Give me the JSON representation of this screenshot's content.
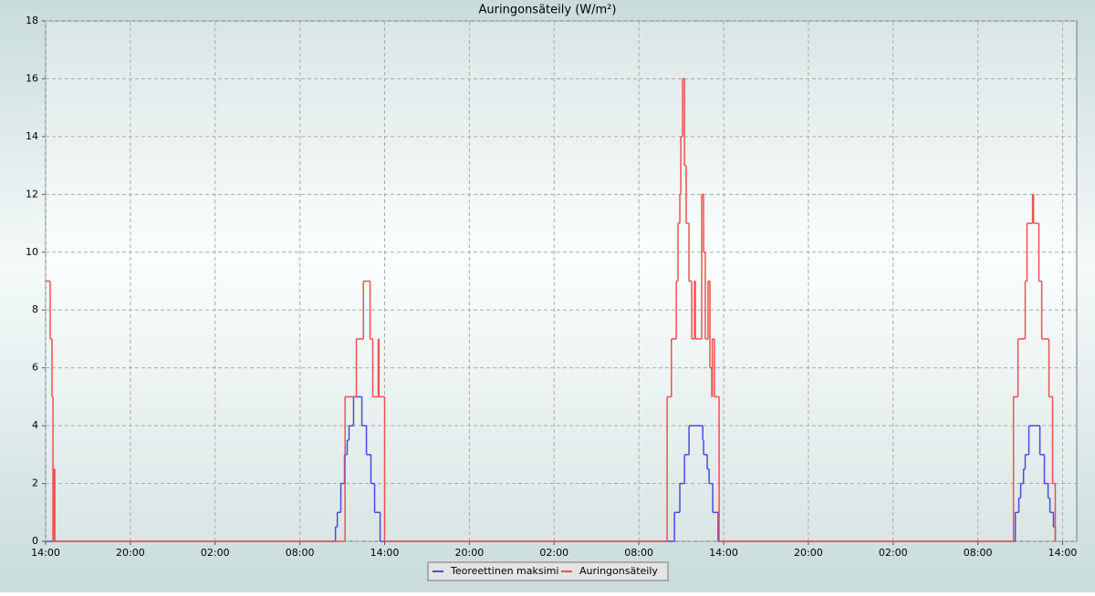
{
  "chart_data": {
    "type": "step-line",
    "title": "Auringonsäteily (W/m²)",
    "xlim": [
      0,
      73
    ],
    "xticks": [
      {
        "value": 0,
        "label": "14:00"
      },
      {
        "value": 6,
        "label": "20:00"
      },
      {
        "value": 12,
        "label": "02:00"
      },
      {
        "value": 18,
        "label": "08:00"
      },
      {
        "value": 24,
        "label": "14:00"
      },
      {
        "value": 30,
        "label": "20:00"
      },
      {
        "value": 36,
        "label": "02:00"
      },
      {
        "value": 42,
        "label": "08:00"
      },
      {
        "value": 48,
        "label": "14:00"
      },
      {
        "value": 54,
        "label": "20:00"
      },
      {
        "value": 60,
        "label": "02:00"
      },
      {
        "value": 66,
        "label": "08:00"
      },
      {
        "value": 72,
        "label": "14:00"
      }
    ],
    "ylim": [
      0,
      18
    ],
    "yticks": [
      0,
      2,
      4,
      6,
      8,
      10,
      12,
      14,
      16,
      18
    ],
    "grid": true,
    "legend": "bottom",
    "series": [
      {
        "name": "Teoreettinen maksimi",
        "color": "#4a4ae0",
        "x": [
          0,
          20.52,
          20.65,
          20.9,
          21.16,
          21.35,
          21.48,
          21.8,
          22.39,
          22.71,
          23.03,
          23.29,
          23.68,
          44.52,
          44.9,
          45.23,
          45.55,
          46.52,
          46.58,
          46.84,
          46.97,
          47.23,
          47.61,
          68.65,
          68.9,
          69.03,
          69.23,
          69.35,
          69.61,
          70.39,
          70.71,
          70.97,
          71.1,
          71.35,
          71.48
        ],
        "values": [
          0,
          0.5,
          1,
          2,
          3,
          3.5,
          4,
          5,
          4,
          3,
          2,
          1,
          0,
          1,
          2,
          3,
          4,
          3.5,
          3,
          2.5,
          2,
          1,
          0,
          1,
          1.5,
          2,
          2.5,
          3,
          4,
          3,
          2,
          1.5,
          1,
          0.5,
          0
        ]
      },
      {
        "name": "Auringonsäteily",
        "color": "#f05050",
        "x": [
          0,
          0.32,
          0.45,
          0.52,
          0.58,
          0.65,
          21.2,
          22.0,
          22.5,
          22.97,
          23.16,
          23.55,
          23.6,
          24.0,
          44.0,
          44.3,
          44.65,
          44.77,
          44.9,
          44.97,
          45.1,
          45.23,
          45.35,
          45.55,
          45.74,
          45.94,
          46.0,
          46.45,
          46.58,
          46.7,
          46.9,
          47.03,
          47.16,
          47.2,
          47.35,
          47.68,
          68.52,
          68.84,
          69.35,
          69.48,
          69.87,
          69.94,
          70.32,
          70.52,
          71.03,
          71.29,
          71.48
        ],
        "values": [
          9,
          7,
          5,
          0,
          2.5,
          0,
          5,
          7,
          9,
          7,
          5,
          7,
          5,
          0,
          5,
          7,
          9,
          11,
          12,
          14,
          16,
          13,
          11,
          9,
          7,
          9,
          7,
          12,
          10,
          7,
          9,
          6,
          5,
          7,
          5,
          0,
          5,
          7,
          9,
          11,
          12,
          11,
          9,
          7,
          5,
          2,
          0
        ]
      }
    ]
  }
}
